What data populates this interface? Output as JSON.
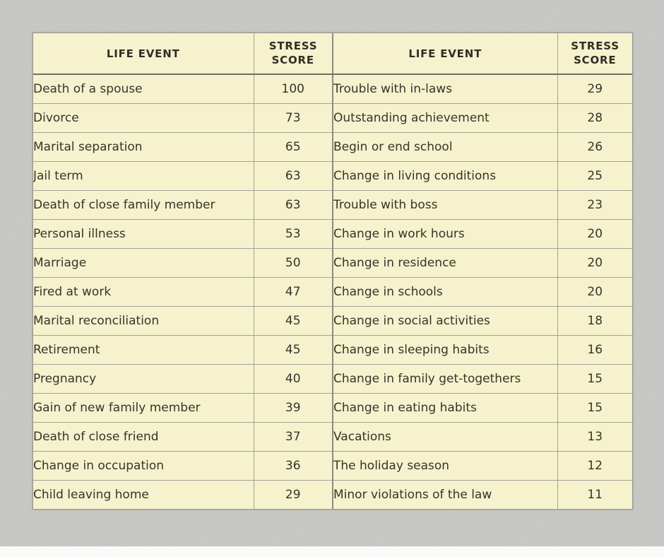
{
  "colors": {
    "page_background": "#c9c9c6",
    "table_background": "#f5f2cd",
    "grid_line": "#a3a296",
    "header_rule": "#6f6f65",
    "text": "#35352a"
  },
  "table": {
    "header": {
      "left_event_label": "LIFE EVENT",
      "left_score_label": "STRESS SCORE",
      "right_event_label": "LIFE EVENT",
      "right_score_label": "STRESS SCORE"
    },
    "rows": [
      {
        "left_event": "Death of a spouse",
        "left_score": "100",
        "right_event": "Trouble with in-laws",
        "right_score": "29"
      },
      {
        "left_event": "Divorce",
        "left_score": "73",
        "right_event": "Outstanding achievement",
        "right_score": "28"
      },
      {
        "left_event": "Marital separation",
        "left_score": "65",
        "right_event": "Begin or end school",
        "right_score": "26"
      },
      {
        "left_event": "Jail term",
        "left_score": "63",
        "right_event": "Change in living conditions",
        "right_score": "25"
      },
      {
        "left_event": "Death of close family member",
        "left_score": "63",
        "right_event": "Trouble with boss",
        "right_score": "23"
      },
      {
        "left_event": "Personal illness",
        "left_score": "53",
        "right_event": "Change in work hours",
        "right_score": "20"
      },
      {
        "left_event": "Marriage",
        "left_score": "50",
        "right_event": "Change in residence",
        "right_score": "20"
      },
      {
        "left_event": "Fired at work",
        "left_score": "47",
        "right_event": "Change in schools",
        "right_score": "20"
      },
      {
        "left_event": "Marital reconciliation",
        "left_score": "45",
        "right_event": "Change in social activities",
        "right_score": "18"
      },
      {
        "left_event": "Retirement",
        "left_score": "45",
        "right_event": "Change in sleeping habits",
        "right_score": "16"
      },
      {
        "left_event": "Pregnancy",
        "left_score": "40",
        "right_event": "Change in family get-togethers",
        "right_score": "15"
      },
      {
        "left_event": "Gain of new family member",
        "left_score": "39",
        "right_event": "Change in eating habits",
        "right_score": "15"
      },
      {
        "left_event": "Death of close friend",
        "left_score": "37",
        "right_event": "Vacations",
        "right_score": "13"
      },
      {
        "left_event": "Change in occupation",
        "left_score": "36",
        "right_event": "The holiday season",
        "right_score": "12"
      },
      {
        "left_event": "Child leaving home",
        "left_score": "29",
        "right_event": "Minor violations of the law",
        "right_score": "11"
      }
    ]
  }
}
